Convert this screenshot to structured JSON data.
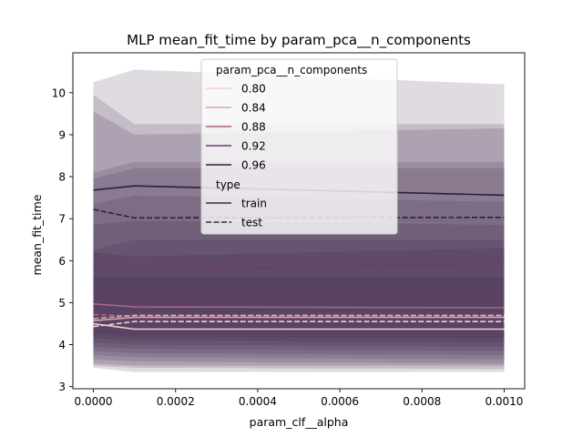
{
  "chart_data": {
    "type": "line",
    "title": "MLP mean_fit_time by param_pca__n_components",
    "xlabel": "param_clf__alpha",
    "ylabel": "mean_fit_time",
    "xlim": [
      -5e-05,
      0.00105
    ],
    "ylim": [
      2.95,
      10.95
    ],
    "xticks": [
      0.0,
      0.0002,
      0.0004,
      0.0006,
      0.0008,
      0.001
    ],
    "xtick_labels": [
      "0.0000",
      "0.0002",
      "0.0004",
      "0.0006",
      "0.0008",
      "0.0010"
    ],
    "yticks": [
      3,
      4,
      5,
      6,
      7,
      8,
      9,
      10
    ],
    "ytick_labels": [
      "3",
      "4",
      "5",
      "6",
      "7",
      "8",
      "9",
      "10"
    ],
    "grid": false,
    "x": [
      0.0,
      0.0001,
      0.001
    ],
    "band_color": "#3b1f45",
    "bands": [
      {
        "lower": [
          3.45,
          3.35,
          3.35
        ],
        "upper": [
          10.25,
          10.55,
          10.2
        ]
      },
      {
        "lower": [
          3.5,
          3.45,
          3.42
        ],
        "upper": [
          9.95,
          9.25,
          9.25
        ]
      },
      {
        "lower": [
          3.55,
          3.5,
          3.5
        ],
        "upper": [
          9.55,
          9.0,
          9.15
        ]
      },
      {
        "lower": [
          3.65,
          3.6,
          3.55
        ],
        "upper": [
          8.1,
          8.35,
          8.35
        ]
      },
      {
        "lower": [
          3.75,
          3.7,
          3.65
        ],
        "upper": [
          7.95,
          8.2,
          8.2
        ]
      },
      {
        "lower": [
          3.85,
          3.8,
          3.75
        ],
        "upper": [
          7.35,
          7.55,
          7.4
        ]
      },
      {
        "lower": [
          3.95,
          3.9,
          3.85
        ],
        "upper": [
          6.85,
          6.95,
          6.85
        ]
      },
      {
        "lower": [
          4.05,
          4.0,
          3.95
        ],
        "upper": [
          6.25,
          6.5,
          6.5
        ]
      },
      {
        "lower": [
          4.15,
          4.1,
          4.05
        ],
        "upper": [
          6.2,
          6.1,
          6.3
        ]
      },
      {
        "lower": [
          4.25,
          4.2,
          4.15
        ],
        "upper": [
          5.6,
          5.6,
          5.6
        ]
      }
    ],
    "series": [
      {
        "name": "0.96",
        "type": "train",
        "color": "#2d1e3e",
        "values": [
          7.68,
          7.78,
          7.56
        ]
      },
      {
        "name": "0.96",
        "type": "test",
        "color": "#2d1e3e",
        "values": [
          7.22,
          7.02,
          7.03
        ]
      },
      {
        "name": "0.92",
        "type": "train",
        "color": "#6a3d6b",
        "values": [
          5.85,
          5.78,
          5.93
        ]
      },
      {
        "name": "0.92",
        "type": "test",
        "color": "#6a3d6b",
        "values": [
          5.35,
          5.3,
          5.3
        ]
      },
      {
        "name": "0.88",
        "type": "train",
        "color": "#a7668a",
        "values": [
          4.97,
          4.9,
          4.88
        ]
      },
      {
        "name": "0.88",
        "type": "test",
        "color": "#a7668a",
        "values": [
          4.72,
          4.68,
          4.68
        ]
      },
      {
        "name": "0.84",
        "type": "train",
        "color": "#d7a3ab",
        "values": [
          4.57,
          4.65,
          4.65
        ]
      },
      {
        "name": "0.84",
        "type": "test",
        "color": "#d7a3ab",
        "values": [
          4.62,
          4.7,
          4.7
        ]
      },
      {
        "name": "0.80",
        "type": "train",
        "color": "#efd1d1",
        "values": [
          4.5,
          4.37,
          4.37
        ]
      },
      {
        "name": "0.80",
        "type": "test",
        "color": "#efd1d1",
        "values": [
          4.43,
          4.55,
          4.55
        ]
      }
    ],
    "legend": {
      "placement": "top-center",
      "hue_title": "param_pca__n_components",
      "hue_items": [
        {
          "label": "0.80",
          "color": "#efd1d1"
        },
        {
          "label": "0.84",
          "color": "#d7a3ab"
        },
        {
          "label": "0.88",
          "color": "#a7668a"
        },
        {
          "label": "0.92",
          "color": "#6a3d6b"
        },
        {
          "label": "0.96",
          "color": "#2d1e3e"
        }
      ],
      "style_title": "type",
      "style_items": [
        {
          "label": "train",
          "dash": "solid"
        },
        {
          "label": "test",
          "dash": "dashed"
        }
      ]
    }
  }
}
